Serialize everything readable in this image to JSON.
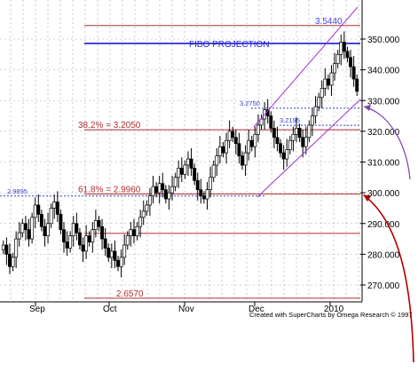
{
  "chart_data": {
    "type": "candlestick",
    "title": "",
    "y_axis": {
      "ticks": [
        "270.000",
        "280.000",
        "290.000",
        "300.000",
        "310.000",
        "320.000",
        "330.000",
        "340.000",
        "350.000"
      ],
      "range": [
        264,
        356
      ],
      "side": "right"
    },
    "x_axis": {
      "ticks": [
        "Sep",
        "Oct",
        "Nov",
        "Dec",
        "2010"
      ]
    },
    "grid": true,
    "horizontal_levels": [
      {
        "label": "3.5440",
        "value": 354.4,
        "color": "#b03030",
        "label_color": "#4444dd"
      },
      {
        "label": "FIBO PROJECTION",
        "value": 348.6,
        "color": "#2a2ad8",
        "label_color": "#2a2ad8"
      },
      {
        "label": "38.2% = 3.2050",
        "value": 320.5,
        "color": "#b03030",
        "label_color": "#b03030"
      },
      {
        "label": "61.8% = 2.9960",
        "value": 299.6,
        "color": "#b03030",
        "label_color": "#b03030"
      },
      {
        "label": "",
        "value": 286.8,
        "color": "#b03030",
        "label_color": "#b03030"
      },
      {
        "label": "2.6570",
        "value": 265.7,
        "color": "#b03030",
        "label_color": "#b03030"
      }
    ],
    "dotted_levels": [
      {
        "label": "2.9895",
        "value": 298.95
      },
      {
        "label": "3.2750",
        "value": 327.5
      },
      {
        "label": "3.2195",
        "value": 321.95
      }
    ],
    "channel": {
      "color": "#a030d0",
      "lower": [
        [
          "mid-Dec",
          298
        ],
        [
          "2010",
          330
        ]
      ],
      "upper": [
        [
          "mid-Dec",
          317
        ],
        [
          "2010",
          357
        ]
      ]
    },
    "candles_close": [
      283,
      280,
      276,
      279,
      285,
      287,
      290,
      288,
      285,
      292,
      296,
      293,
      289,
      286,
      290,
      295,
      297,
      293,
      288,
      284,
      282,
      286,
      290,
      287,
      283,
      281,
      286,
      284,
      288,
      291,
      289,
      285,
      282,
      279,
      281,
      278,
      276,
      279,
      283,
      286,
      288,
      286,
      289,
      292,
      294,
      296,
      299,
      302,
      300,
      303,
      301,
      298,
      300,
      302,
      305,
      308,
      306,
      309,
      311,
      308,
      304,
      301,
      299,
      298,
      301,
      305,
      309,
      312,
      315,
      313,
      317,
      320,
      318,
      316,
      312,
      309,
      313,
      317,
      315,
      319,
      322,
      324,
      327,
      325,
      321,
      318,
      316,
      313,
      311,
      314,
      317,
      319,
      321,
      318,
      315,
      318,
      322,
      325,
      328,
      331,
      334,
      337,
      335,
      339,
      342,
      345,
      349,
      346,
      344,
      341,
      337,
      333
    ],
    "credit": "Created with SuperCharts by Omega Research © 1997"
  }
}
